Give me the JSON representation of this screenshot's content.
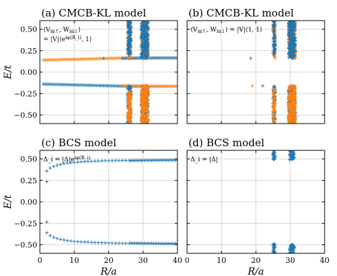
{
  "chart_data": [
    {
      "type": "scatter",
      "title": "(a) CMCB-KL model",
      "annotation_lines": [
        "⟨V_{iα↑}, W_{iα↓}⟩",
        "= |V|⟨e^{iφ(R_i)}, 1⟩"
      ],
      "ylabel": "E/t",
      "xlabel": "",
      "xlim": [
        0,
        40
      ],
      "ylim": [
        -0.6,
        0.6
      ],
      "xticks": [
        0,
        10,
        20,
        30,
        40
      ],
      "yticks": [
        -0.5,
        -0.25,
        0.0,
        0.25,
        0.5
      ],
      "ytick_labels": [
        "−0.50",
        "−0.25",
        "0.00",
        "0.25",
        "0.50"
      ],
      "grid": true,
      "series_colors": [
        "#1f77b4",
        "#ff7f0e"
      ],
      "bands": [
        {
          "series": 1,
          "x_from": 1,
          "x_to": 40,
          "y_start": 0.14,
          "y_end": 0.165
        },
        {
          "series": 0,
          "x_from": 1,
          "x_to": 40,
          "y_start": -0.14,
          "y_end": -0.165
        },
        {
          "series": 0,
          "x_from": 24,
          "x_to": 40,
          "y_start": 0.16,
          "y_end": 0.165
        },
        {
          "series": 1,
          "x_from": 24,
          "x_to": 40,
          "y_start": -0.16,
          "y_end": -0.165
        }
      ],
      "clusters": [
        {
          "series": 1,
          "x": [
            25.5,
            26.5
          ],
          "y": [
            0.16,
            0.6
          ]
        },
        {
          "series": 0,
          "x": [
            25.5,
            26.5
          ],
          "y": [
            0.2,
            0.6
          ]
        },
        {
          "series": 1,
          "x": [
            29.5,
            31.5
          ],
          "y": [
            0.16,
            0.6
          ]
        },
        {
          "series": 0,
          "x": [
            29.5,
            31.5
          ],
          "y": [
            0.16,
            0.6
          ]
        },
        {
          "series": 0,
          "x": [
            25.5,
            26.5
          ],
          "y": [
            -0.6,
            -0.16
          ]
        },
        {
          "series": 1,
          "x": [
            25.5,
            26.5
          ],
          "y": [
            -0.6,
            -0.2
          ]
        },
        {
          "series": 0,
          "x": [
            29.5,
            31.5
          ],
          "y": [
            -0.6,
            -0.16
          ]
        },
        {
          "series": 1,
          "x": [
            29.5,
            31.5
          ],
          "y": [
            -0.6,
            -0.16
          ]
        }
      ],
      "points": [
        {
          "series": 0,
          "x": 18.5,
          "y": 0.16
        }
      ]
    },
    {
      "type": "scatter",
      "title": "(b) CMCB-KL model",
      "annotation_lines": [
        "⟨V_{iα↑}, W_{iα↓}⟩ = |V|⟨1, 1⟩"
      ],
      "ylabel": "",
      "xlabel": "",
      "xlim": [
        0,
        40
      ],
      "ylim": [
        -0.6,
        0.6
      ],
      "xticks": [
        0,
        10,
        20,
        30,
        40
      ],
      "yticks": [
        -0.5,
        -0.25,
        0.0,
        0.25,
        0.5
      ],
      "grid": true,
      "series_colors": [
        "#1f77b4",
        "#ff7f0e"
      ],
      "bands": [],
      "clusters": [
        {
          "series": 1,
          "x": [
            25.0,
            25.6
          ],
          "y": [
            0.16,
            0.6
          ]
        },
        {
          "series": 0,
          "x": [
            25.0,
            25.6
          ],
          "y": [
            0.2,
            0.6
          ]
        },
        {
          "series": 1,
          "x": [
            29.5,
            31.5
          ],
          "y": [
            0.16,
            0.6
          ]
        },
        {
          "series": 0,
          "x": [
            29.5,
            31.5
          ],
          "y": [
            0.16,
            0.6
          ]
        },
        {
          "series": 0,
          "x": [
            25.0,
            25.6
          ],
          "y": [
            -0.6,
            -0.16
          ]
        },
        {
          "series": 1,
          "x": [
            25.0,
            25.6
          ],
          "y": [
            -0.6,
            -0.2
          ]
        },
        {
          "series": 0,
          "x": [
            29.5,
            31.5
          ],
          "y": [
            -0.6,
            -0.16
          ]
        },
        {
          "series": 1,
          "x": [
            29.5,
            31.5
          ],
          "y": [
            -0.6,
            -0.16
          ]
        }
      ],
      "points": [
        {
          "series": 0,
          "x": 18.5,
          "y": 0.16
        },
        {
          "series": 1,
          "x": 19.0,
          "y": -0.16
        },
        {
          "series": 0,
          "x": 22.0,
          "y": -0.16
        }
      ]
    },
    {
      "type": "scatter",
      "title": "(c) BCS model",
      "annotation_lines": [
        "Δ_i = |Δ|e^{iφ(R_i)}"
      ],
      "ylabel": "E/t",
      "xlabel": "R/a",
      "xlim": [
        0,
        40
      ],
      "ylim": [
        -0.6,
        0.6
      ],
      "xticks": [
        0,
        10,
        20,
        30,
        40
      ],
      "xtick_labels": [
        "0",
        "10",
        "20",
        "30",
        "40"
      ],
      "yticks": [
        -0.5,
        -0.25,
        0.0,
        0.25,
        0.5
      ],
      "ytick_labels": [
        "−0.50",
        "−0.25",
        "0.00",
        "0.25",
        "0.50"
      ],
      "grid": true,
      "series_colors": [
        "#1f77b4"
      ],
      "curve": {
        "series": 0,
        "x_from": 2,
        "x_to": 40,
        "asymptote": 0.5,
        "amplitude": 0.5,
        "decay": 1.0
      },
      "points": [
        {
          "series": 0,
          "x": 2.0,
          "y": 0.235
        },
        {
          "series": 0,
          "x": 2.0,
          "y": -0.235
        }
      ]
    },
    {
      "type": "scatter",
      "title": "(d) BCS model",
      "annotation_lines": [
        "Δ_i = |Δ|"
      ],
      "ylabel": "",
      "xlabel": "R/a",
      "xlim": [
        0,
        40
      ],
      "ylim": [
        -0.6,
        0.6
      ],
      "xticks": [
        0,
        10,
        20,
        30,
        40
      ],
      "xtick_labels": [
        "0",
        "10",
        "20",
        "30",
        "40"
      ],
      "yticks": [
        -0.5,
        -0.25,
        0.0,
        0.25,
        0.5
      ],
      "grid": true,
      "series_colors": [
        "#1f77b4"
      ],
      "clusters": [
        {
          "series": 0,
          "x": [
            25.0,
            25.6
          ],
          "y": [
            0.49,
            0.6
          ]
        },
        {
          "series": 0,
          "x": [
            29.8,
            31.2
          ],
          "y": [
            0.49,
            0.6
          ]
        },
        {
          "series": 0,
          "x": [
            25.0,
            25.6
          ],
          "y": [
            -0.6,
            -0.49
          ]
        },
        {
          "series": 0,
          "x": [
            29.8,
            31.2
          ],
          "y": [
            -0.6,
            -0.49
          ]
        }
      ]
    }
  ]
}
